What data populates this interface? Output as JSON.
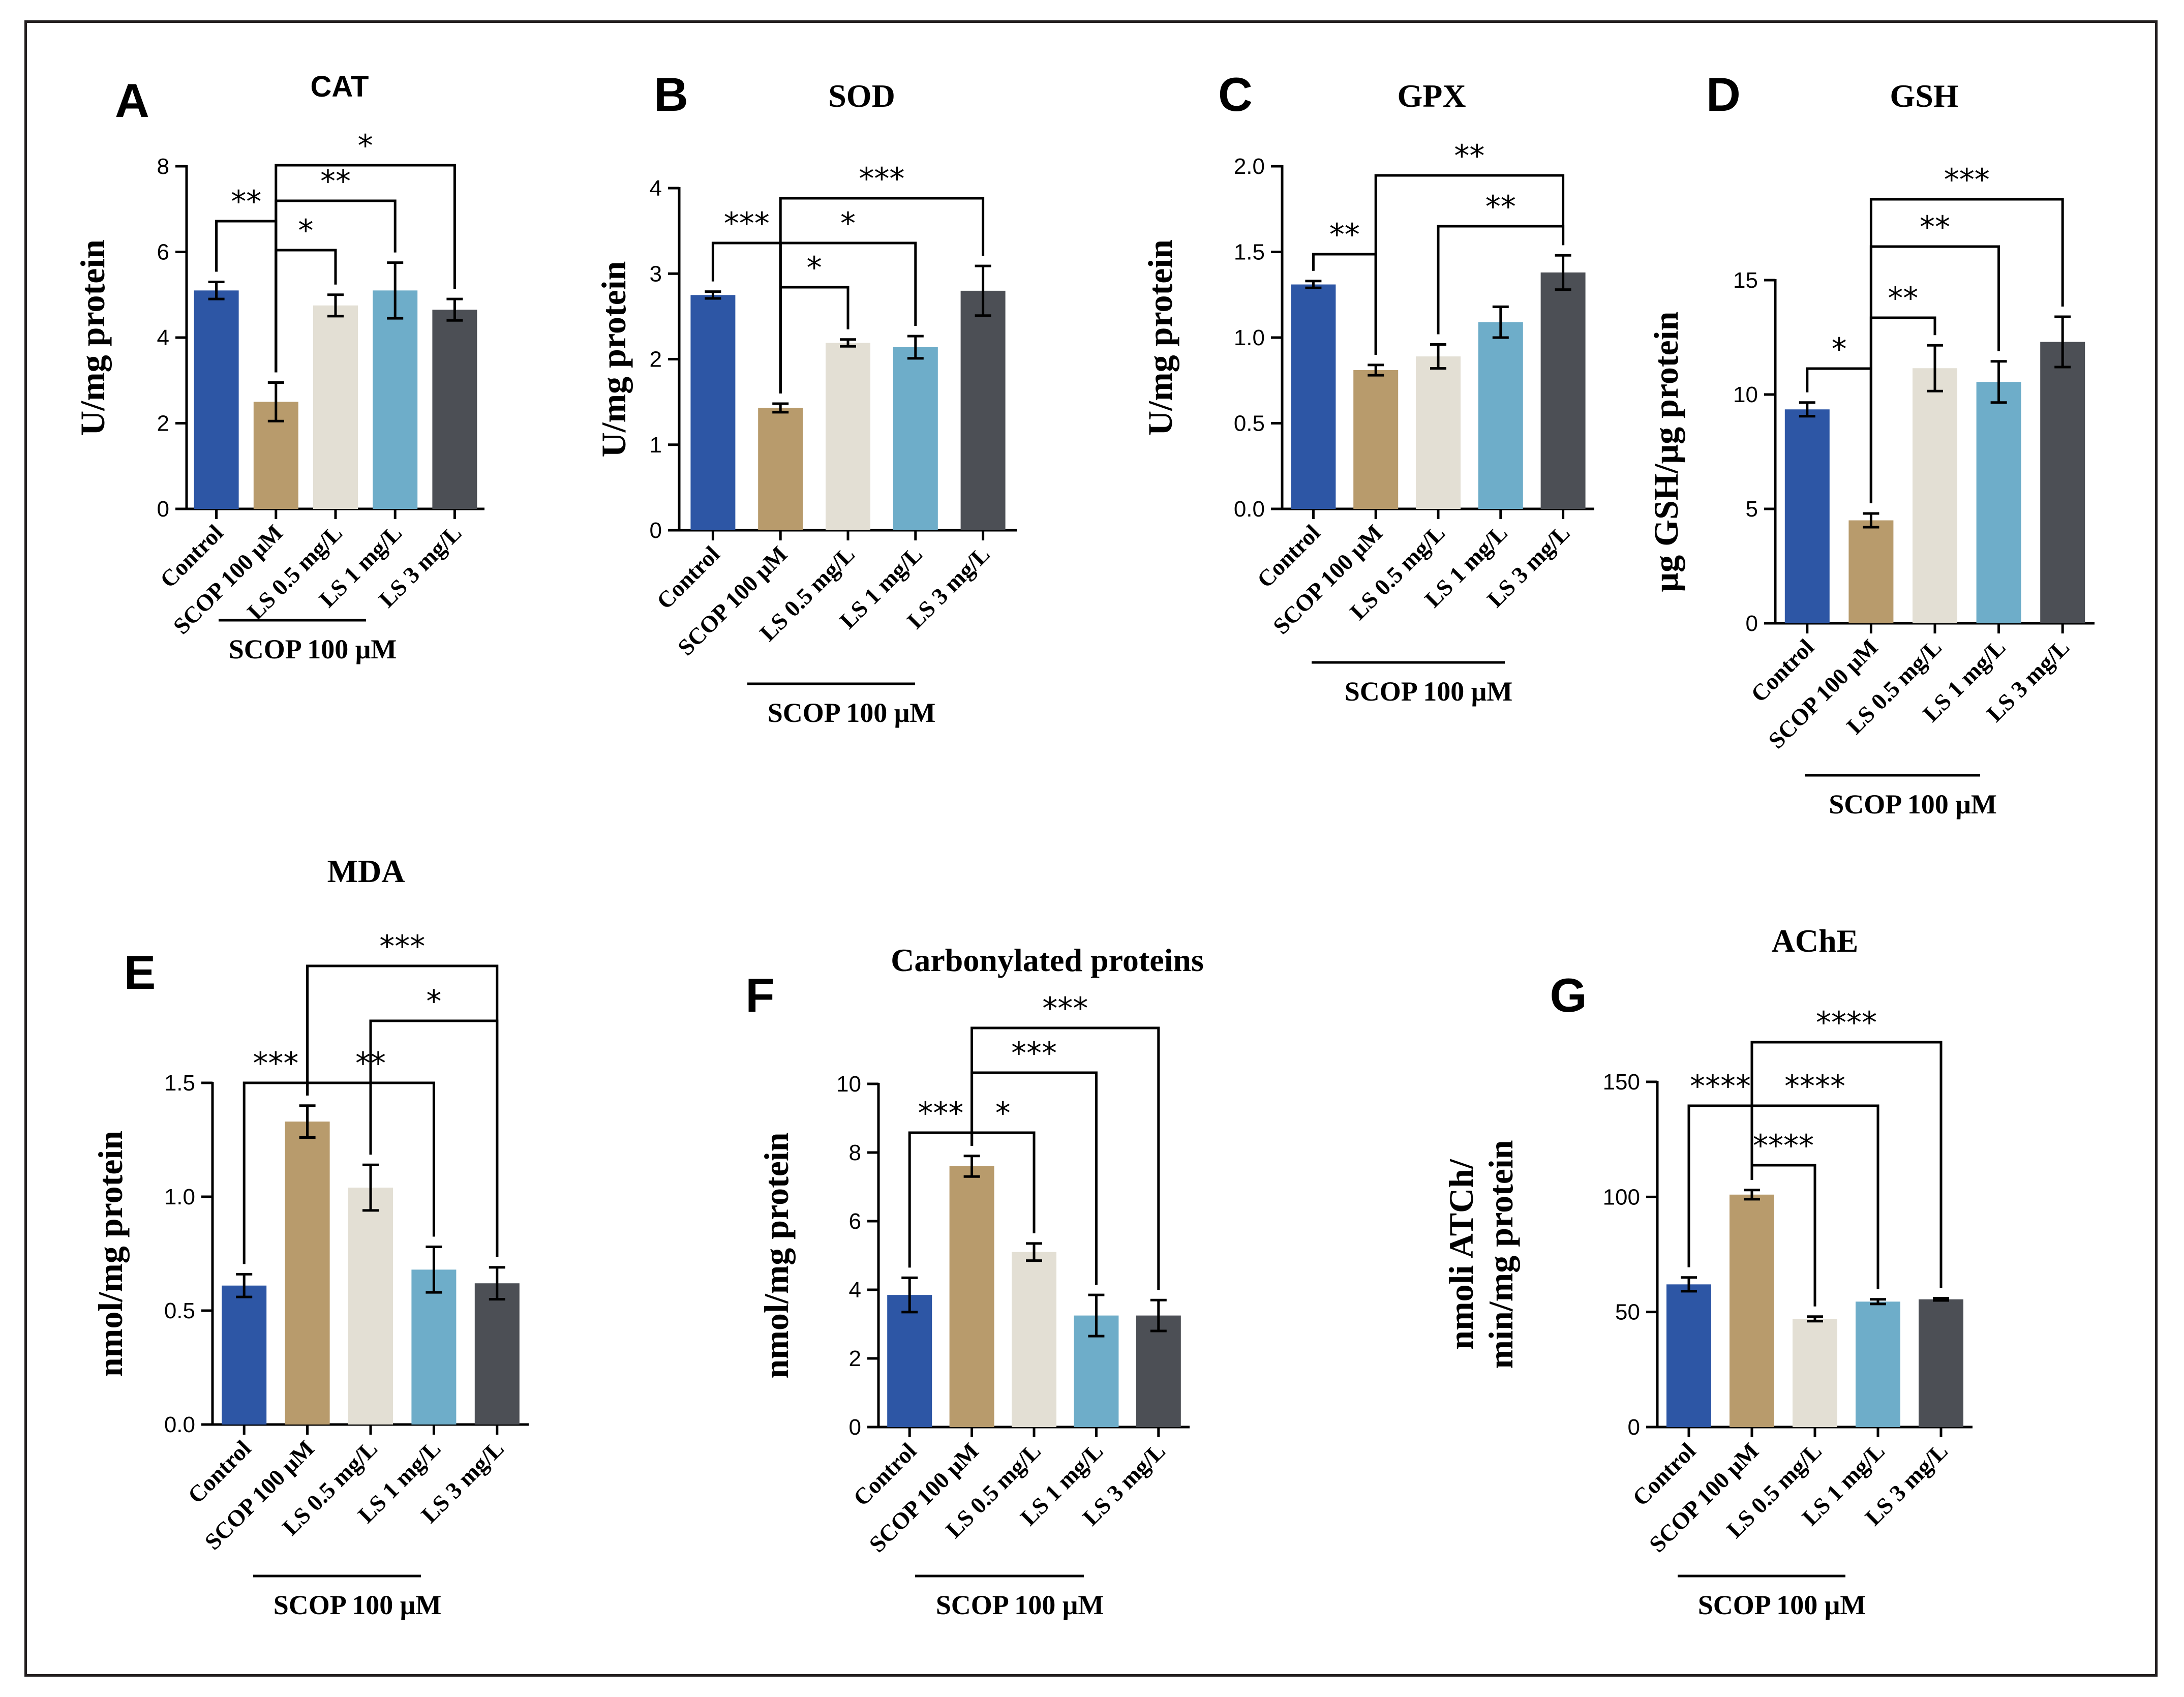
{
  "figure": {
    "group_label": "SCOP 100 μM"
  },
  "colors": [
    "#2d56a5",
    "#b89b6c",
    "#e3dfd4",
    "#6eadc9",
    "#4c4f55"
  ],
  "chart_data": [
    {
      "id": "A",
      "type": "bar",
      "title": "CAT",
      "ylabel": "U/mg protein",
      "categories": [
        "Control",
        "SCOP 100 μM",
        "LS 0.5 mg/L",
        "LS 1 mg/L",
        "LS 3 mg/L"
      ],
      "values": [
        5.1,
        2.5,
        4.75,
        5.1,
        4.65
      ],
      "errors": [
        0.2,
        0.45,
        0.25,
        0.65,
        0.25
      ],
      "ylim": [
        0,
        8
      ],
      "yticks": [
        "0",
        "2",
        "4",
        "6",
        "8"
      ],
      "comparisons": [
        {
          "from": 0,
          "to": 1,
          "label": "**"
        },
        {
          "from": 1,
          "to": 2,
          "label": "*"
        },
        {
          "from": 1,
          "to": 3,
          "label": "**"
        },
        {
          "from": 1,
          "to": 4,
          "label": "*"
        }
      ]
    },
    {
      "id": "B",
      "type": "bar",
      "title": "SOD",
      "ylabel": "U/mg protein",
      "categories": [
        "Control",
        "SCOP 100 μM",
        "LS 0.5 mg/L",
        "LS 1 mg/L",
        "LS 3 mg/L"
      ],
      "values": [
        2.75,
        1.43,
        2.19,
        2.14,
        2.8
      ],
      "errors": [
        0.04,
        0.05,
        0.04,
        0.13,
        0.29
      ],
      "ylim": [
        0,
        4
      ],
      "yticks": [
        "0",
        "1",
        "2",
        "3",
        "4"
      ],
      "comparisons": [
        {
          "from": 0,
          "to": 1,
          "label": "***"
        },
        {
          "from": 1,
          "to": 2,
          "label": "*"
        },
        {
          "from": 1,
          "to": 3,
          "label": "*"
        },
        {
          "from": 1,
          "to": 4,
          "label": "***"
        }
      ]
    },
    {
      "id": "C",
      "type": "bar",
      "title": "GPX",
      "ylabel": "U/mg protein",
      "categories": [
        "Control",
        "SCOP 100 μM",
        "LS 0.5 mg/L",
        "LS 1 mg/L",
        "LS 3 mg/L"
      ],
      "values": [
        1.31,
        0.81,
        0.89,
        1.09,
        1.38
      ],
      "errors": [
        0.02,
        0.03,
        0.07,
        0.09,
        0.1
      ],
      "ylim": [
        0,
        2
      ],
      "yticks": [
        "0.0",
        "0.5",
        "1.0",
        "1.5",
        "2.0"
      ],
      "comparisons": [
        {
          "from": 0,
          "to": 1,
          "label": "**"
        },
        {
          "from": 2,
          "to": 4,
          "label": "**"
        },
        {
          "from": 1,
          "to": 4,
          "label": "**"
        }
      ]
    },
    {
      "id": "D",
      "type": "bar",
      "title": "GSH",
      "ylabel": "μg GSH/μg protein",
      "categories": [
        "Control",
        "SCOP 100 μM",
        "LS 0.5 mg/L",
        "LS 1 mg/L",
        "LS 3 mg/L"
      ],
      "values": [
        9.35,
        4.5,
        11.15,
        10.55,
        12.3
      ],
      "errors": [
        0.3,
        0.3,
        1.0,
        0.9,
        1.1
      ],
      "ylim": [
        0,
        15
      ],
      "yticks": [
        "0",
        "5",
        "10",
        "15"
      ],
      "comparisons": [
        {
          "from": 0,
          "to": 1,
          "label": "*"
        },
        {
          "from": 1,
          "to": 2,
          "label": "**"
        },
        {
          "from": 1,
          "to": 3,
          "label": "**"
        },
        {
          "from": 1,
          "to": 4,
          "label": "***"
        }
      ]
    },
    {
      "id": "E",
      "type": "bar",
      "title": "MDA",
      "ylabel": "nmol/mg protein",
      "categories": [
        "Control",
        "SCOP 100 μM",
        "LS 0.5 mg/L",
        "LS 1 mg/L",
        "LS 3 mg/L"
      ],
      "values": [
        0.61,
        1.33,
        1.04,
        0.68,
        0.62
      ],
      "errors": [
        0.05,
        0.07,
        0.1,
        0.1,
        0.07
      ],
      "ylim": [
        0,
        1.5
      ],
      "yticks": [
        "0.0",
        "0.5",
        "1.0",
        "1.5"
      ],
      "comparisons": [
        {
          "from": 0,
          "to": 1,
          "label": "***"
        },
        {
          "from": 1,
          "to": 3,
          "label": "**"
        },
        {
          "from": 2,
          "to": 4,
          "label": "*"
        },
        {
          "from": 1,
          "to": 4,
          "label": "***"
        }
      ]
    },
    {
      "id": "F",
      "type": "bar",
      "title": "Carbonylated proteins",
      "ylabel": "nmol/mg protein",
      "categories": [
        "Control",
        "SCOP 100 μM",
        "LS 0.5 mg/L",
        "LS 1 mg/L",
        "LS 3 mg/L"
      ],
      "values": [
        3.85,
        7.6,
        5.1,
        3.25,
        3.25
      ],
      "errors": [
        0.5,
        0.3,
        0.25,
        0.6,
        0.45
      ],
      "ylim": [
        0,
        10
      ],
      "yticks": [
        "0",
        "2",
        "4",
        "6",
        "8",
        "10"
      ],
      "comparisons": [
        {
          "from": 0,
          "to": 1,
          "label": "***"
        },
        {
          "from": 1,
          "to": 2,
          "label": "*"
        },
        {
          "from": 1,
          "to": 3,
          "label": "***"
        },
        {
          "from": 1,
          "to": 4,
          "label": "***"
        }
      ]
    },
    {
      "id": "G",
      "type": "bar",
      "title": "AChE",
      "ylabel": "nmoli ATCh/ min/mg protein",
      "ylabel_lines": [
        "nmoli ATCh/",
        "min/mg protein"
      ],
      "categories": [
        "Control",
        "SCOP 100 μM",
        "LS 0.5 mg/L",
        "LS 1 mg/L",
        "LS 3 mg/L"
      ],
      "values": [
        62,
        101,
        47,
        54.5,
        55.5
      ],
      "errors": [
        3,
        2,
        1,
        1,
        0.5
      ],
      "ylim": [
        0,
        150
      ],
      "yticks": [
        "0",
        "50",
        "100",
        "150"
      ],
      "comparisons": [
        {
          "from": 0,
          "to": 1,
          "label": "****"
        },
        {
          "from": 1,
          "to": 2,
          "label": "****"
        },
        {
          "from": 1,
          "to": 3,
          "label": "****"
        },
        {
          "from": 1,
          "to": 4,
          "label": "****"
        }
      ]
    }
  ]
}
